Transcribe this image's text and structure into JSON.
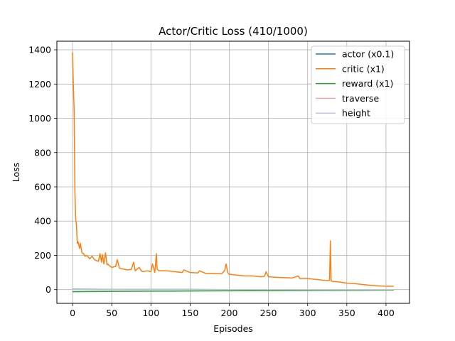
{
  "chart_data": {
    "type": "line",
    "title": "Actor/Critic Loss (410/1000)",
    "xlabel": "Episodes",
    "ylabel": "Loss",
    "xlim": [
      -20,
      430
    ],
    "ylim": [
      -80,
      1450
    ],
    "xticks": [
      0,
      50,
      100,
      150,
      200,
      250,
      300,
      350,
      400
    ],
    "yticks": [
      0,
      200,
      400,
      600,
      800,
      1000,
      1200,
      1400
    ],
    "grid": true,
    "legend_position": "top-right",
    "series": [
      {
        "name": "actor (x0.1)",
        "color": "#1f77b4",
        "x": [
          0,
          50,
          100,
          150,
          200,
          250,
          300,
          350,
          410
        ],
        "y": [
          2,
          1,
          1,
          1,
          0,
          0,
          0,
          0,
          0
        ]
      },
      {
        "name": "critic (x1)",
        "color": "#ff7f0e",
        "x": [
          0,
          1,
          2,
          3,
          4,
          5,
          6,
          7,
          8,
          9,
          10,
          12,
          14,
          16,
          18,
          20,
          22,
          25,
          28,
          30,
          33,
          35,
          37,
          38,
          40,
          42,
          44,
          45,
          47,
          50,
          55,
          57,
          60,
          65,
          70,
          75,
          78,
          80,
          85,
          88,
          90,
          95,
          100,
          102,
          105,
          107,
          108,
          110,
          120,
          130,
          140,
          142,
          150,
          160,
          162,
          170,
          180,
          190,
          194,
          196,
          198,
          200,
          210,
          220,
          230,
          240,
          245,
          247,
          250,
          260,
          270,
          280,
          288,
          290,
          300,
          310,
          320,
          326,
          328,
          329,
          330,
          332,
          340,
          350,
          360,
          370,
          380,
          390,
          400,
          410
        ],
        "y": [
          1385,
          1200,
          1050,
          580,
          410,
          380,
          270,
          280,
          260,
          240,
          270,
          215,
          210,
          195,
          200,
          190,
          180,
          195,
          175,
          170,
          165,
          210,
          160,
          205,
          150,
          215,
          145,
          150,
          140,
          130,
          135,
          175,
          125,
          120,
          115,
          118,
          160,
          110,
          130,
          108,
          105,
          110,
          105,
          150,
          100,
          210,
          120,
          110,
          110,
          105,
          100,
          115,
          100,
          98,
          110,
          95,
          95,
          92,
          110,
          150,
          100,
          90,
          85,
          80,
          80,
          75,
          78,
          105,
          75,
          72,
          70,
          68,
          80,
          65,
          65,
          60,
          55,
          52,
          55,
          285,
          50,
          48,
          45,
          38,
          35,
          30,
          25,
          22,
          20,
          20
        ]
      },
      {
        "name": "reward (x1)",
        "color": "#2ca02c",
        "x": [
          0,
          50,
          100,
          150,
          200,
          250,
          300,
          350,
          410
        ],
        "y": [
          -12,
          -10,
          -9,
          -8,
          -7,
          -6,
          -5,
          -4,
          -3
        ]
      },
      {
        "name": "traverse",
        "color": "#f4a7a0",
        "x": [
          0,
          410
        ],
        "y": [
          0,
          0
        ]
      },
      {
        "name": "height",
        "color": "#c5bfe0",
        "x": [
          0,
          410
        ],
        "y": [
          0,
          0
        ]
      }
    ]
  }
}
